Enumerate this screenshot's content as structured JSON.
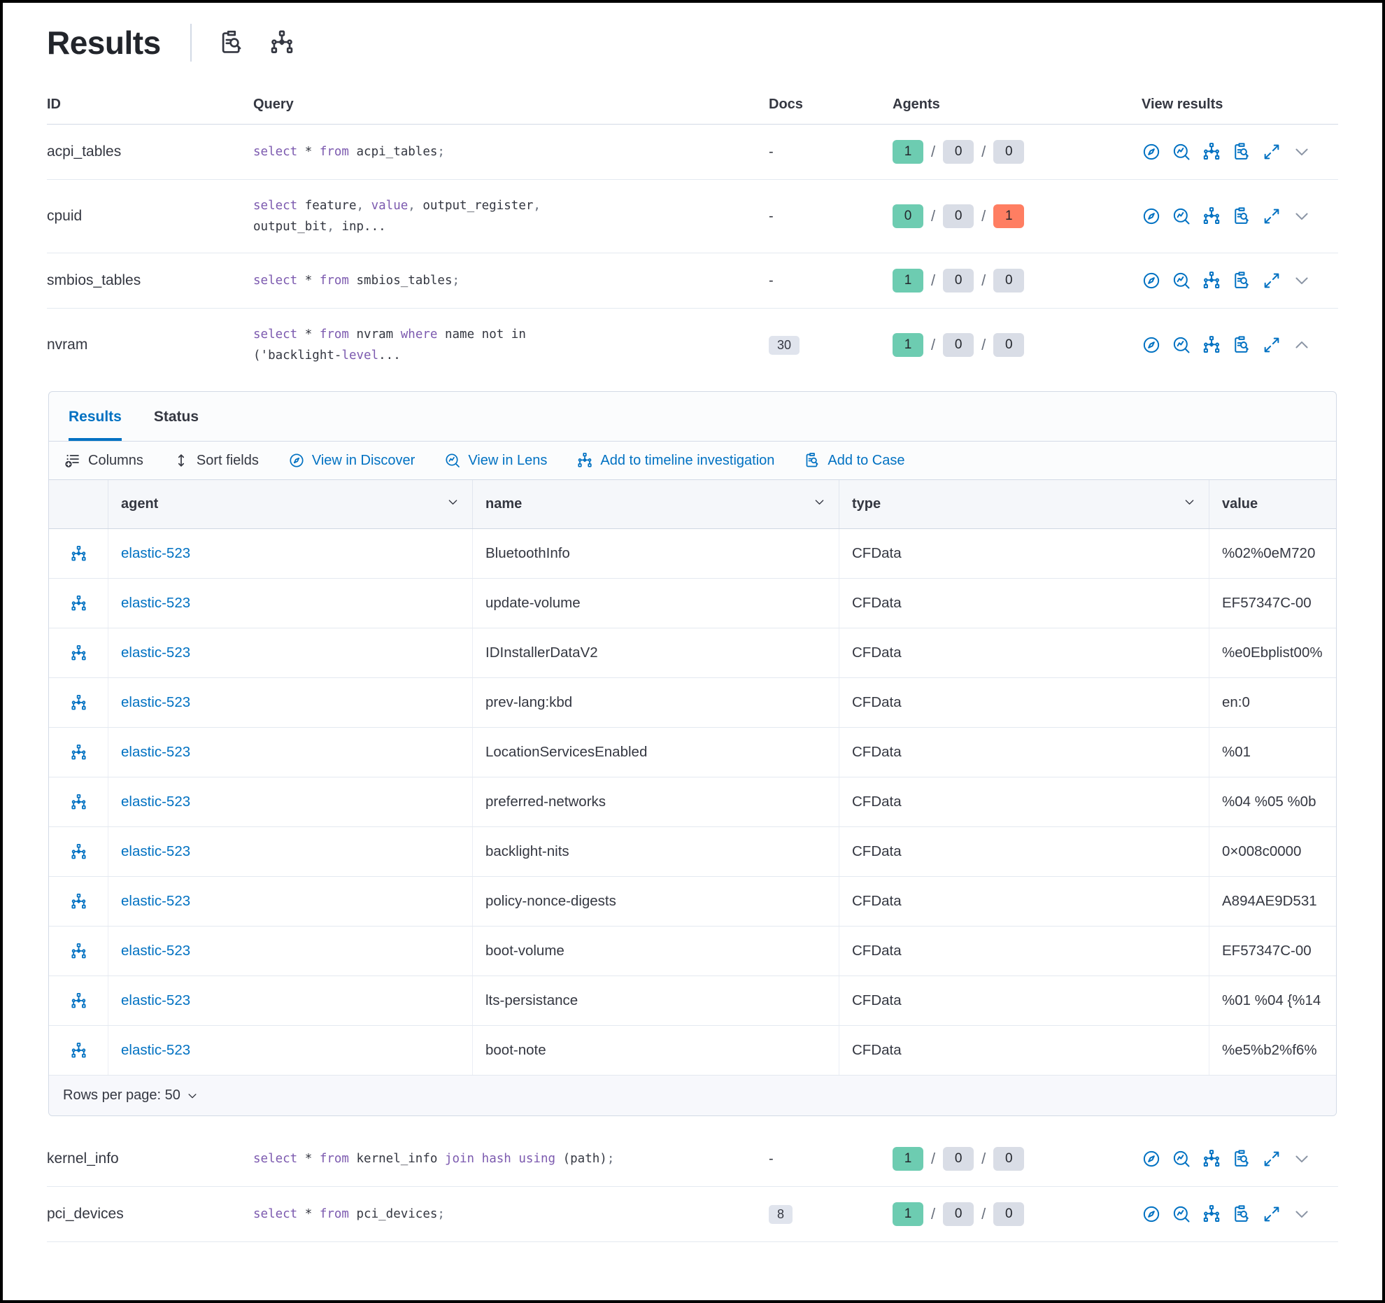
{
  "title": "Results",
  "separator": "/",
  "colors": {
    "accent_blue": "#0071c2",
    "success_badge": "#6dccb1",
    "neutral_badge": "#d9dde6",
    "danger_badge": "#ff7e62",
    "keyword_purple": "#7c5aaf"
  },
  "header_icons": [
    {
      "name": "query-details-icon"
    },
    {
      "name": "timeline-icon"
    }
  ],
  "queries_table": {
    "headers": {
      "id": "ID",
      "query": "Query",
      "docs": "Docs",
      "agents": "Agents",
      "view": "View results"
    },
    "rows": [
      {
        "id": "acpi_tables",
        "query": [
          [
            [
              "select",
              "k"
            ],
            [
              " * ",
              ""
            ],
            [
              "from",
              "k"
            ],
            [
              " acpi_tables",
              ""
            ],
            [
              ";",
              "p"
            ]
          ]
        ],
        "docs": {
          "text": "-",
          "badge": false
        },
        "agents": [
          {
            "v": "1",
            "c": "green"
          },
          {
            "v": "0",
            "c": "gray"
          },
          {
            "v": "0",
            "c": "gray"
          }
        ],
        "expanded": false
      },
      {
        "id": "cpuid",
        "query": [
          [
            [
              "select",
              "k"
            ],
            [
              " feature",
              ""
            ],
            [
              ", ",
              "p"
            ],
            [
              "value",
              "k"
            ],
            [
              ", ",
              "p"
            ],
            [
              "output_register",
              ""
            ],
            [
              ",",
              "p"
            ]
          ],
          [
            [
              "output_bit",
              ""
            ],
            [
              ", ",
              "p"
            ],
            [
              "inp...",
              ""
            ]
          ]
        ],
        "docs": {
          "text": "-",
          "badge": false
        },
        "agents": [
          {
            "v": "0",
            "c": "green"
          },
          {
            "v": "0",
            "c": "gray"
          },
          {
            "v": "1",
            "c": "red"
          }
        ],
        "expanded": false
      },
      {
        "id": "smbios_tables",
        "query": [
          [
            [
              "select",
              "k"
            ],
            [
              " * ",
              ""
            ],
            [
              "from",
              "k"
            ],
            [
              " smbios_tables",
              ""
            ],
            [
              ";",
              "p"
            ]
          ]
        ],
        "docs": {
          "text": "-",
          "badge": false
        },
        "agents": [
          {
            "v": "1",
            "c": "green"
          },
          {
            "v": "0",
            "c": "gray"
          },
          {
            "v": "0",
            "c": "gray"
          }
        ],
        "expanded": false
      },
      {
        "id": "nvram",
        "query": [
          [
            [
              "select",
              "k"
            ],
            [
              " * ",
              ""
            ],
            [
              "from",
              "k"
            ],
            [
              " nvram ",
              ""
            ],
            [
              "where",
              "k"
            ],
            [
              " name not in",
              ""
            ]
          ],
          [
            [
              "('backlight-",
              ""
            ],
            [
              "level",
              "k"
            ],
            [
              "...",
              ""
            ]
          ]
        ],
        "docs": {
          "text": "30",
          "badge": true
        },
        "agents": [
          {
            "v": "1",
            "c": "green"
          },
          {
            "v": "0",
            "c": "gray"
          },
          {
            "v": "0",
            "c": "gray"
          }
        ],
        "expanded": true
      },
      {
        "id": "kernel_info",
        "query": [
          [
            [
              "select",
              "k"
            ],
            [
              " * ",
              ""
            ],
            [
              "from",
              "k"
            ],
            [
              " kernel_info ",
              ""
            ],
            [
              "join",
              "k"
            ],
            [
              " ",
              ""
            ],
            [
              "hash",
              "k"
            ],
            [
              " ",
              ""
            ],
            [
              "using",
              "k"
            ],
            [
              " (path)",
              ""
            ],
            [
              ";",
              "p"
            ]
          ]
        ],
        "docs": {
          "text": "-",
          "badge": false
        },
        "agents": [
          {
            "v": "1",
            "c": "green"
          },
          {
            "v": "0",
            "c": "gray"
          },
          {
            "v": "0",
            "c": "gray"
          }
        ],
        "expanded": false
      },
      {
        "id": "pci_devices",
        "query": [
          [
            [
              "select",
              "k"
            ],
            [
              " * ",
              ""
            ],
            [
              "from",
              "k"
            ],
            [
              " pci_devices",
              ""
            ],
            [
              ";",
              "p"
            ]
          ]
        ],
        "docs": {
          "text": "8",
          "badge": true
        },
        "agents": [
          {
            "v": "1",
            "c": "green"
          },
          {
            "v": "0",
            "c": "gray"
          },
          {
            "v": "0",
            "c": "gray"
          }
        ],
        "expanded": false
      }
    ],
    "row_actions": [
      {
        "name": "view-in-discover-icon",
        "icon": "compass"
      },
      {
        "name": "view-in-lens-icon",
        "icon": "lens"
      },
      {
        "name": "add-to-timeline-icon",
        "icon": "hierarchy"
      },
      {
        "name": "add-to-case-icon",
        "icon": "clipsearch"
      },
      {
        "name": "expand-results-icon",
        "icon": "expand"
      }
    ]
  },
  "results_panel": {
    "tabs": [
      {
        "label": "Results",
        "active": true
      },
      {
        "label": "Status",
        "active": false
      }
    ],
    "toolbar": [
      {
        "label": "Columns",
        "icon": "columns-icon",
        "style": "dark"
      },
      {
        "label": "Sort fields",
        "icon": "sort-icon",
        "style": "dark"
      },
      {
        "label": "View in Discover",
        "icon": "discover-icon",
        "style": "blue"
      },
      {
        "label": "View in Lens",
        "icon": "lens-icon",
        "style": "blue"
      },
      {
        "label": "Add to timeline investigation",
        "icon": "timeline-icon",
        "style": "blue"
      },
      {
        "label": "Add to Case",
        "icon": "case-icon",
        "style": "blue"
      }
    ],
    "grid": {
      "columns": [
        {
          "label": "agent",
          "chevron": true
        },
        {
          "label": "name",
          "chevron": true
        },
        {
          "label": "type",
          "chevron": true
        },
        {
          "label": "value",
          "chevron": false
        }
      ],
      "rows": [
        {
          "agent": "elastic-523",
          "name": "BluetoothInfo",
          "type": "CFData",
          "value": "%02%0eM720"
        },
        {
          "agent": "elastic-523",
          "name": "update-volume",
          "type": "CFData",
          "value": "EF57347C-00"
        },
        {
          "agent": "elastic-523",
          "name": "IDInstallerDataV2",
          "type": "CFData",
          "value": "%e0Ebplist00%"
        },
        {
          "agent": "elastic-523",
          "name": "prev-lang:kbd",
          "type": "CFData",
          "value": "en:0"
        },
        {
          "agent": "elastic-523",
          "name": "LocationServicesEnabled",
          "type": "CFData",
          "value": "%01"
        },
        {
          "agent": "elastic-523",
          "name": "preferred-networks",
          "type": "CFData",
          "value": "%04 %05 %0b"
        },
        {
          "agent": "elastic-523",
          "name": "backlight-nits",
          "type": "CFData",
          "value": "0×008c0000"
        },
        {
          "agent": "elastic-523",
          "name": "policy-nonce-digests",
          "type": "CFData",
          "value": "A894AE9D531"
        },
        {
          "agent": "elastic-523",
          "name": "boot-volume",
          "type": "CFData",
          "value": "EF57347C-00"
        },
        {
          "agent": "elastic-523",
          "name": "lts-persistance",
          "type": "CFData",
          "value": "%01 %04 {%14"
        },
        {
          "agent": "elastic-523",
          "name": "boot-note",
          "type": "CFData",
          "value": "%e5%b2%f6%"
        }
      ],
      "footer": {
        "rows_per_page": "Rows per page: 50"
      }
    }
  }
}
